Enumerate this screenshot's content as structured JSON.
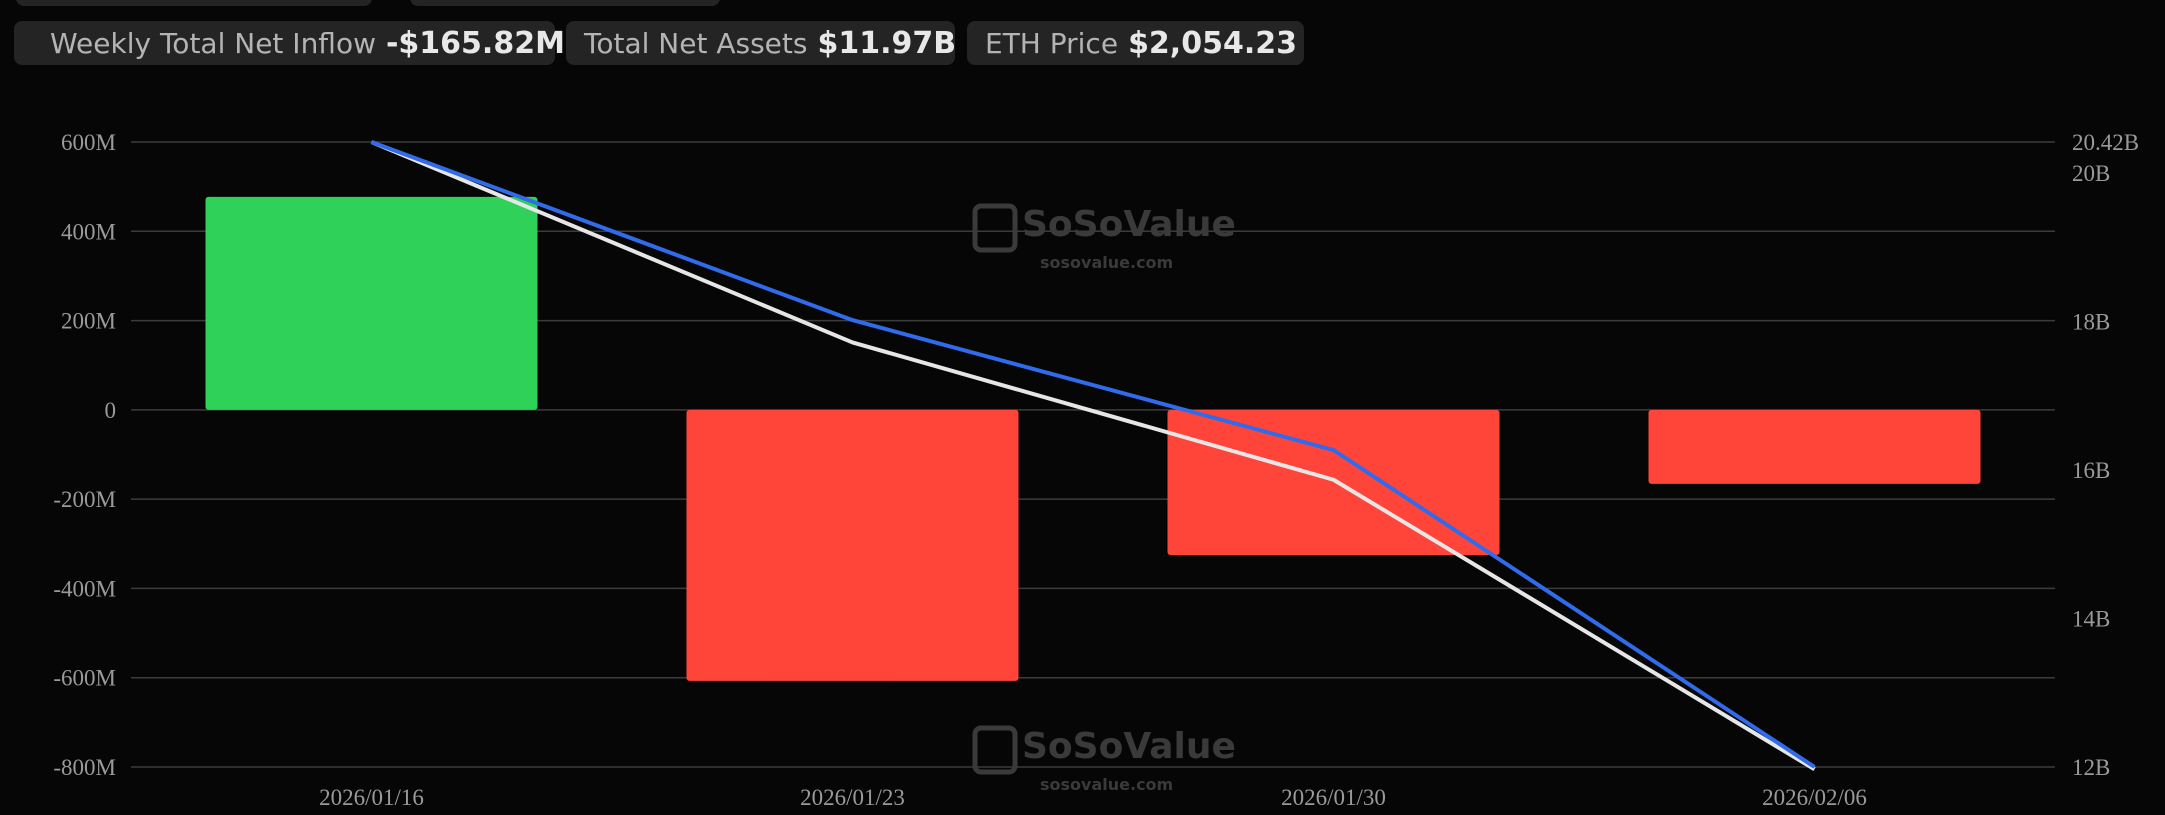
{
  "legend": [
    {
      "label": "Weekly Total Net Inflow",
      "value": "-$165.82M",
      "icon": "green-red-bar-swatch"
    },
    {
      "label": "Total Net Assets",
      "value": "$11.97B",
      "icon": "white-line-swatch"
    },
    {
      "label": "ETH Price",
      "value": "$2,054.23",
      "icon": "blue-line-swatch"
    }
  ],
  "watermark": {
    "brand": "SoSoValue",
    "url": "sosovalue.com"
  },
  "chart_data": {
    "type": "bar",
    "categories": [
      "2026/01/16",
      "2026/01/23",
      "2026/01/30",
      "2026/02/06"
    ],
    "series": [
      {
        "name": "Weekly Total Net Inflow",
        "type": "bar",
        "axis": "left",
        "unit": "M USD",
        "values": [
          477,
          -607,
          -325,
          -165.82
        ]
      },
      {
        "name": "Total Net Assets",
        "type": "line",
        "axis": "right",
        "unit": "B USD",
        "values": [
          20.42,
          17.72,
          15.87,
          11.97
        ]
      },
      {
        "name": "ETH Price",
        "type": "line",
        "axis": "hidden",
        "unit": "USD",
        "values": [
          3300,
          2945,
          2686,
          2054.23
        ]
      }
    ],
    "left_axis": {
      "ylim": [
        -800,
        600
      ],
      "ticks": [
        "600M",
        "400M",
        "200M",
        "0",
        "-200M",
        "-400M",
        "-600M",
        "-800M"
      ],
      "tick_values": [
        600,
        400,
        200,
        0,
        -200,
        -400,
        -600,
        -800
      ]
    },
    "right_axis": {
      "ylim": [
        12,
        20.42
      ],
      "ticks": [
        "20.42B",
        "20B",
        "18B",
        "16B",
        "14B",
        "12B"
      ],
      "tick_values": [
        20.42,
        20,
        18,
        16,
        14,
        12
      ]
    },
    "hidden_axis": {
      "ylim": [
        2054.23,
        3300
      ]
    },
    "grid": true,
    "legend_position": "top-left",
    "colors": {
      "positive": "#30d158",
      "negative": "#ff453a",
      "assets": "#e6e6e6",
      "eth": "#2f6bea",
      "grid": "#3c3c3c",
      "background": "#060606"
    }
  }
}
